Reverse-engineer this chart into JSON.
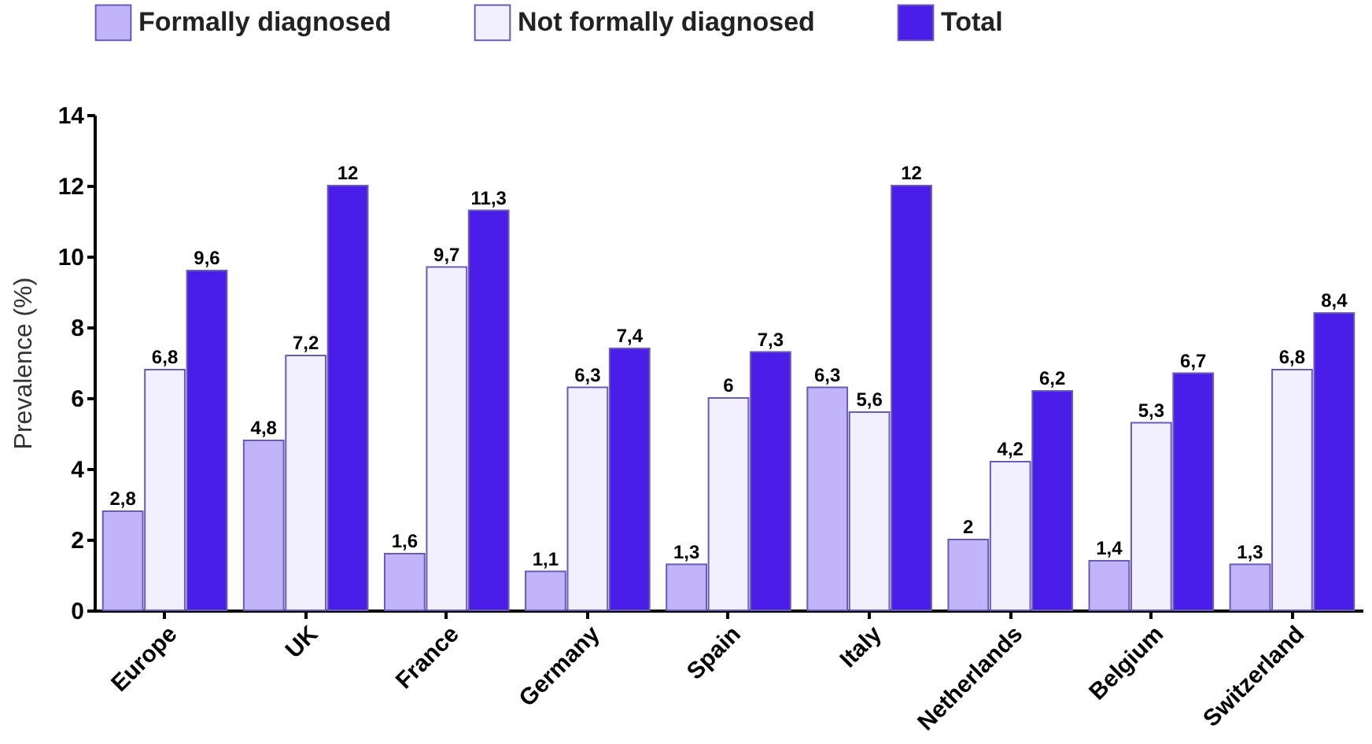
{
  "chart_data": {
    "type": "bar",
    "ylabel": "Prevalence (%)",
    "categories": [
      "Europe",
      "UK",
      "France",
      "Germany",
      "Spain",
      "Italy",
      "Netherlands",
      "Belgium",
      "Switzerland"
    ],
    "series": [
      {
        "name": "Formally diagnosed",
        "color": "#c2b4f8",
        "values": [
          2.8,
          4.8,
          1.6,
          1.1,
          1.3,
          6.3,
          2,
          1.4,
          1.3
        ],
        "value_labels": [
          "2,8",
          "4,8",
          "1,6",
          "1,1",
          "1,3",
          "6,3",
          "2",
          "1,4",
          "1,3"
        ]
      },
      {
        "name": "Not formally diagnosed",
        "color": "#f2f0fe",
        "values": [
          6.8,
          7.2,
          9.7,
          6.3,
          6,
          5.6,
          4.2,
          5.3,
          6.8
        ],
        "value_labels": [
          "6,8",
          "7,2",
          "9,7",
          "6,3",
          "6",
          "5,6",
          "4,2",
          "5,3",
          "6,8"
        ]
      },
      {
        "name": "Total",
        "color": "#4a1ee8",
        "values": [
          9.6,
          12,
          11.3,
          7.4,
          7.3,
          12,
          6.2,
          6.7,
          8.4
        ],
        "value_labels": [
          "9,6",
          "12",
          "11,3",
          "7,4",
          "7,3",
          "12",
          "6,2",
          "6,7",
          "8,4"
        ]
      }
    ],
    "ylim": [
      0,
      14
    ],
    "yticks": [
      0,
      2,
      4,
      6,
      8,
      10,
      12,
      14
    ],
    "grid": false,
    "legend": "top"
  }
}
